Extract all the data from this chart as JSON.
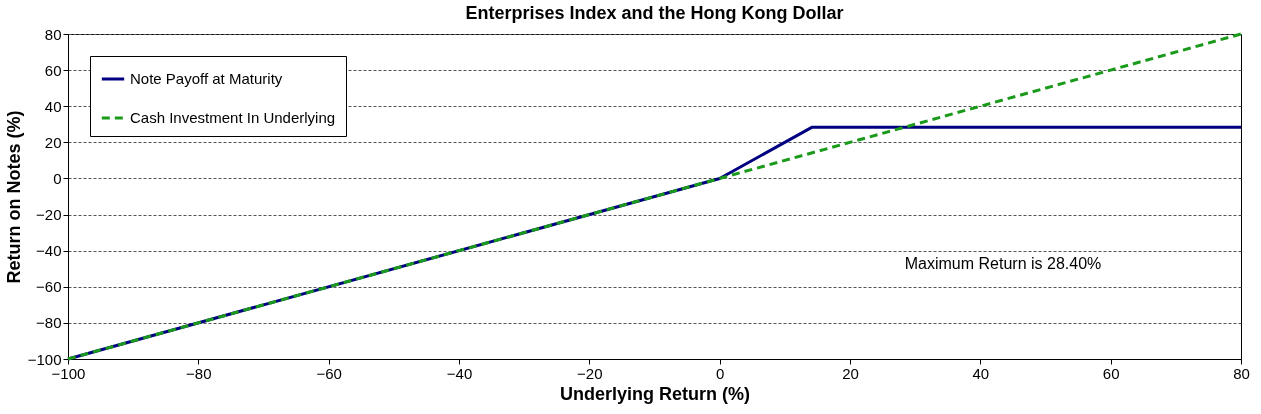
{
  "chart_data": {
    "type": "line",
    "title": "Enterprises Index and the Hong Kong Dollar",
    "xlabel": "Underlying Return (%)",
    "ylabel": "Return on Notes (%)",
    "series": [
      {
        "name": "Note Payoff at Maturity",
        "color": "#000080",
        "line_style": "solid",
        "x": [
          -100,
          0,
          14.2,
          80
        ],
        "values": [
          -100,
          0,
          28.4,
          28.4
        ]
      },
      {
        "name": "Cash Investment In Underlying",
        "color": "#1a9a1a",
        "line_style": "dashed",
        "x": [
          -100,
          80
        ],
        "values": [
          -100,
          80
        ]
      }
    ],
    "xlim": [
      -100,
      80
    ],
    "xticks": [
      -100,
      -80,
      -60,
      -40,
      -20,
      0,
      20,
      40,
      60,
      80
    ],
    "ylim": [
      -100,
      80
    ],
    "yticks": [
      -100,
      -80,
      -60,
      -40,
      -20,
      0,
      20,
      40,
      60,
      80
    ],
    "grid": "y",
    "legend": "top left",
    "marker": "none",
    "annotations": [
      "Maximum Return is 28.40%"
    ]
  }
}
